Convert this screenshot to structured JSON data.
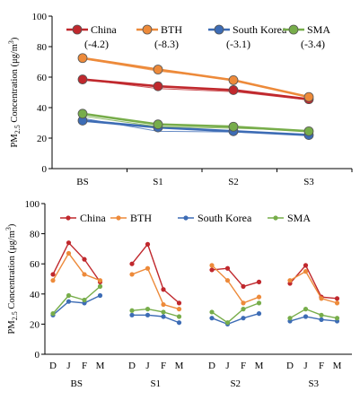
{
  "chart_data": [
    {
      "type": "line",
      "ylabel": "PM2.5 Concentration (μg/m³)",
      "ylim": [
        0,
        100
      ],
      "yticks": [
        0,
        20,
        40,
        60,
        80,
        100
      ],
      "grid": false,
      "legend": "top",
      "categories": [
        "BS",
        "S1",
        "S2",
        "S3"
      ],
      "series": [
        {
          "name": "China",
          "trend": "(-4.2)",
          "color": "#c0282d",
          "values": [
            58.5,
            54,
            51.5,
            45.5
          ],
          "alt_values": [
            58.5,
            52.5,
            50.5,
            45
          ]
        },
        {
          "name": "BTH",
          "trend": "(-8.3)",
          "color": "#ed8a3a",
          "values": [
            72.5,
            65,
            58,
            47
          ],
          "alt_values": [
            72,
            64,
            58.5,
            47
          ]
        },
        {
          "name": "South Korea",
          "trend": "(-3.1)",
          "color": "#3d6cb5",
          "values": [
            31.5,
            27,
            24.5,
            22
          ],
          "alt_values": [
            33,
            24.5,
            24,
            22.5
          ]
        },
        {
          "name": "SMA",
          "trend": "(-3.4)",
          "color": "#77ad4a",
          "values": [
            36,
            29,
            27.5,
            24.5
          ],
          "alt_values": [
            34.5,
            27.5,
            26.5,
            25
          ]
        }
      ]
    },
    {
      "type": "line",
      "ylabel": "PM2.5 Concentration (μg/m³)",
      "ylim": [
        0,
        100
      ],
      "yticks": [
        0,
        20,
        40,
        60,
        80,
        100
      ],
      "grid": false,
      "legend": "top",
      "groups": [
        "BS",
        "S1",
        "S2",
        "S3"
      ],
      "months": [
        "D",
        "J",
        "F",
        "M"
      ],
      "series": [
        {
          "name": "China",
          "color": "#c0282d",
          "values": [
            [
              53,
              74,
              63,
              48
            ],
            [
              60,
              73,
              43,
              34
            ],
            [
              56,
              57,
              45,
              48
            ],
            [
              47,
              59,
              38,
              37
            ]
          ]
        },
        {
          "name": "BTH",
          "color": "#ed8a3a",
          "values": [
            [
              49,
              67,
              53,
              49
            ],
            [
              53,
              57,
              33,
              30
            ],
            [
              59,
              49,
              34,
              38
            ],
            [
              49,
              55,
              37,
              34
            ]
          ]
        },
        {
          "name": "South Korea",
          "color": "#3d6cb5",
          "values": [
            [
              26,
              35,
              34,
              39
            ],
            [
              26,
              26,
              25,
              21
            ],
            [
              24,
              20,
              24,
              27
            ],
            [
              22,
              25,
              23,
              22
            ]
          ]
        },
        {
          "name": "SMA",
          "color": "#77ad4a",
          "values": [
            [
              27,
              39,
              36,
              45
            ],
            [
              29,
              30,
              28,
              25
            ],
            [
              28,
              21,
              30,
              34
            ],
            [
              24,
              30,
              26,
              24
            ]
          ]
        }
      ]
    }
  ]
}
